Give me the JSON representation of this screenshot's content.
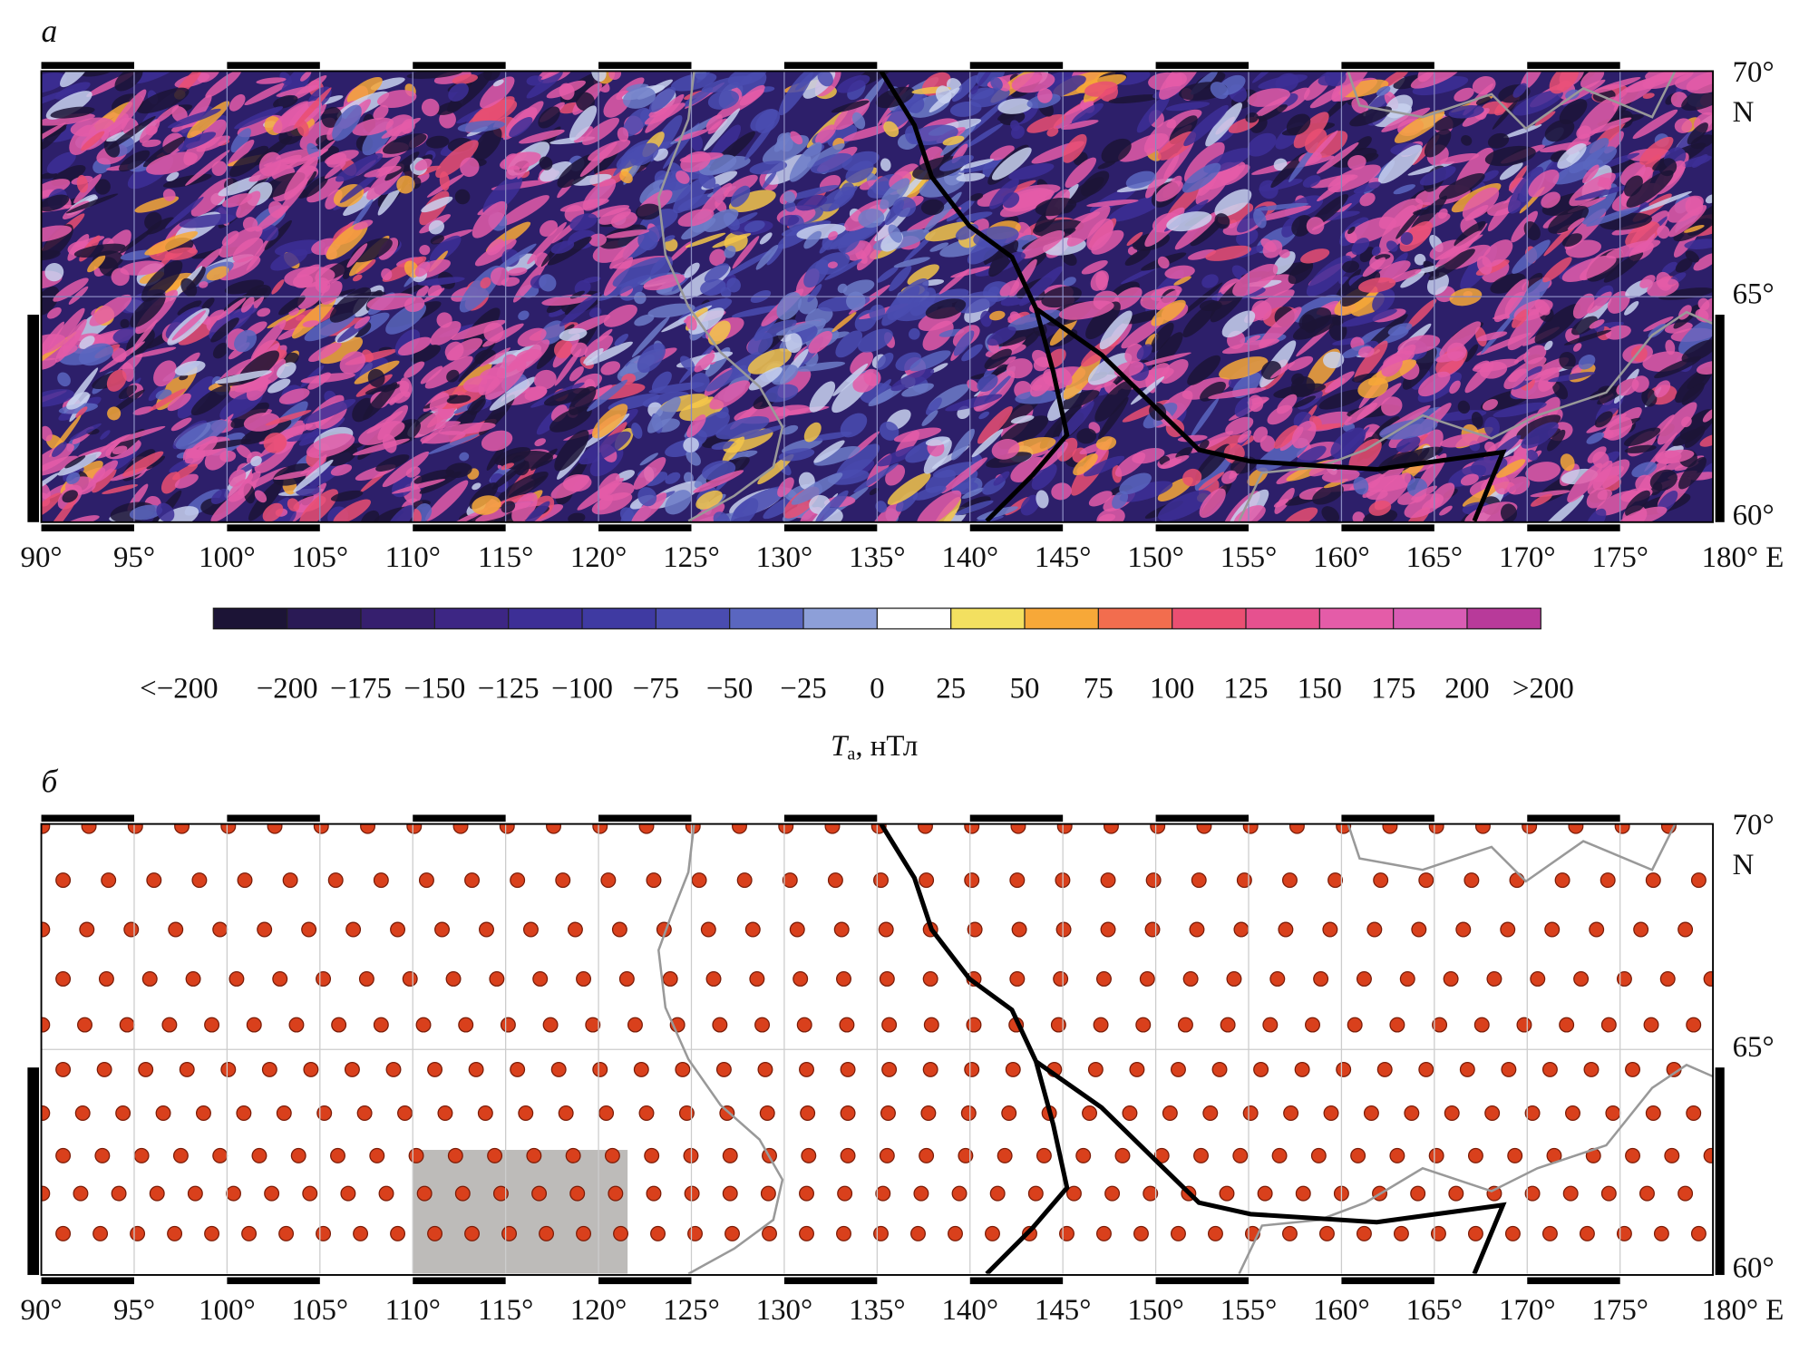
{
  "panels": [
    {
      "label": "а",
      "lon_range": [
        90,
        180
      ],
      "lat_range": [
        60,
        70
      ],
      "lat_unit": "N",
      "xticks": [
        {
          "value": 90,
          "label": "90°"
        },
        {
          "value": 95,
          "label": "95°"
        },
        {
          "value": 100,
          "label": "100°"
        },
        {
          "value": 105,
          "label": "105°"
        },
        {
          "value": 110,
          "label": "110°"
        },
        {
          "value": 115,
          "label": "115°"
        },
        {
          "value": 120,
          "label": "120°"
        },
        {
          "value": 125,
          "label": "125°"
        },
        {
          "value": 130,
          "label": "130°"
        },
        {
          "value": 135,
          "label": "135°"
        },
        {
          "value": 140,
          "label": "140°"
        },
        {
          "value": 145,
          "label": "145°"
        },
        {
          "value": 150,
          "label": "150°"
        },
        {
          "value": 155,
          "label": "155°"
        },
        {
          "value": 160,
          "label": "160°"
        },
        {
          "value": 165,
          "label": "165°"
        },
        {
          "value": 170,
          "label": "170°"
        },
        {
          "value": 175,
          "label": "175°"
        },
        {
          "value": 180,
          "label": "180° E"
        }
      ],
      "yticks": [
        {
          "value": 70,
          "label": "70°"
        },
        {
          "value": 65,
          "label": "65°"
        },
        {
          "value": 60,
          "label": "60°"
        }
      ]
    },
    {
      "label": "б",
      "lon_range": [
        90,
        180
      ],
      "lat_range": [
        60,
        70
      ],
      "lat_unit": "N",
      "xticks": [
        {
          "value": 90,
          "label": "90°"
        },
        {
          "value": 95,
          "label": "95°"
        },
        {
          "value": 100,
          "label": "100°"
        },
        {
          "value": 105,
          "label": "105°"
        },
        {
          "value": 110,
          "label": "110°"
        },
        {
          "value": 115,
          "label": "115°"
        },
        {
          "value": 120,
          "label": "120°"
        },
        {
          "value": 125,
          "label": "125°"
        },
        {
          "value": 130,
          "label": "130°"
        },
        {
          "value": 135,
          "label": "135°"
        },
        {
          "value": 140,
          "label": "140°"
        },
        {
          "value": 145,
          "label": "145°"
        },
        {
          "value": 150,
          "label": "150°"
        },
        {
          "value": 155,
          "label": "155°"
        },
        {
          "value": 160,
          "label": "160°"
        },
        {
          "value": 165,
          "label": "165°"
        },
        {
          "value": 170,
          "label": "170°"
        },
        {
          "value": 175,
          "label": "175°"
        },
        {
          "value": 180,
          "label": "180° E"
        }
      ],
      "yticks": [
        {
          "value": 70,
          "label": "70°"
        },
        {
          "value": 65,
          "label": "65°"
        },
        {
          "value": 60,
          "label": "60°"
        }
      ]
    }
  ],
  "colorbar": {
    "labels": [
      "<−200",
      {
        "value": -200,
        "label": "−200"
      },
      {
        "value": -175,
        "label": "−175"
      },
      {
        "value": -150,
        "label": "−150"
      },
      {
        "value": -125,
        "label": "−125"
      },
      {
        "value": -100,
        "label": "−100"
      },
      {
        "value": -75,
        "label": "−75"
      },
      {
        "value": -50,
        "label": "−50"
      },
      {
        "value": -25,
        "label": "−25"
      },
      0,
      25,
      50,
      75,
      100,
      125,
      150,
      175,
      200,
      ">200"
    ],
    "colors": [
      "#1c1436",
      "#2a1a55",
      "#361f6e",
      "#3d2684",
      "#3d2f96",
      "#3f3aa2",
      "#4a4cb0",
      "#5a66c0",
      "#8d9fd8",
      "#ffffff",
      "#f3e060",
      "#f7a838",
      "#f26d4e",
      "#ea4f72",
      "#e6518f",
      "#e45ca8",
      "#d95cb4",
      "#b83a9a"
    ],
    "title": {
      "symbol": "T",
      "subscript": "а",
      "unit": ", нТл"
    }
  }
}
